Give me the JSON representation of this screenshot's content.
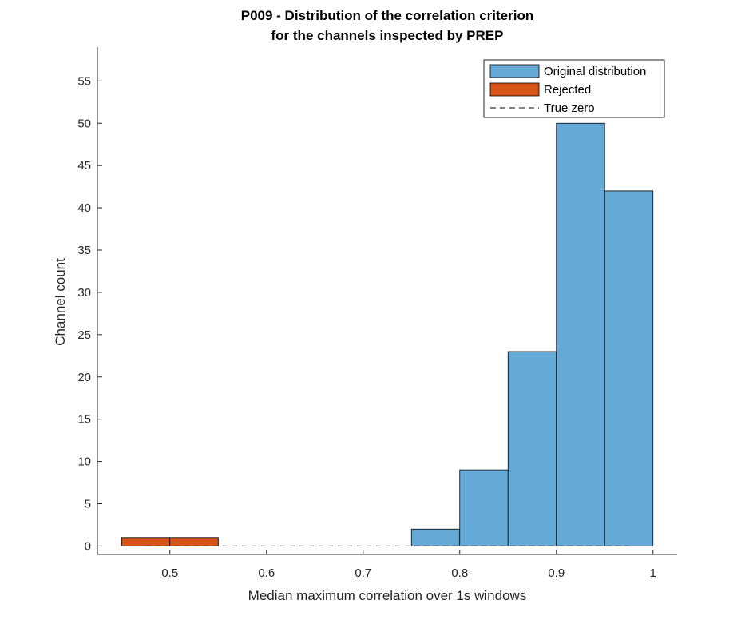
{
  "chart_data": {
    "type": "bar",
    "title": [
      "P009 - Distribution of the correlation criterion",
      "for the channels inspected by PREP"
    ],
    "xlabel": "Median maximum correlation over 1s windows",
    "ylabel": "Channel count",
    "xlim": [
      0.425,
      1.025
    ],
    "ylim": [
      -1,
      59
    ],
    "xticks": [
      0.5,
      0.6,
      0.7,
      0.8,
      0.9,
      1
    ],
    "xtick_labels": [
      "0.5",
      "0.6",
      "0.7",
      "0.8",
      "0.9",
      "1"
    ],
    "yticks": [
      0,
      5,
      10,
      15,
      20,
      25,
      30,
      35,
      40,
      45,
      50,
      55
    ],
    "ytick_labels": [
      "0",
      "5",
      "10",
      "15",
      "20",
      "25",
      "30",
      "35",
      "40",
      "45",
      "50",
      "55"
    ],
    "grid": false,
    "legend_position": "top-right",
    "series": [
      {
        "name": "Original distribution",
        "color": "#65a9d7",
        "bins": [
          {
            "x0": 0.45,
            "x1": 0.5,
            "count": 1
          },
          {
            "x0": 0.5,
            "x1": 0.55,
            "count": 1
          },
          {
            "x0": 0.75,
            "x1": 0.8,
            "count": 2
          },
          {
            "x0": 0.8,
            "x1": 0.85,
            "count": 9
          },
          {
            "x0": 0.85,
            "x1": 0.9,
            "count": 23
          },
          {
            "x0": 0.9,
            "x1": 0.95,
            "count": 50
          },
          {
            "x0": 0.95,
            "x1": 1.0,
            "count": 42
          }
        ]
      },
      {
        "name": "Rejected",
        "color": "#d95319",
        "bins": [
          {
            "x0": 0.45,
            "x1": 0.5,
            "count": 1
          },
          {
            "x0": 0.5,
            "x1": 0.55,
            "count": 1
          }
        ]
      },
      {
        "name": "True zero",
        "color": "#000000",
        "style": "dashed",
        "line": {
          "x": [
            0.475,
            0.975
          ],
          "y": [
            0,
            0
          ]
        }
      }
    ]
  }
}
